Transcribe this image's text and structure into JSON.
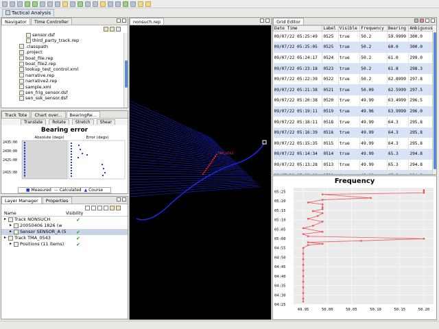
{
  "perspective": {
    "label": "Tactical Analysis"
  },
  "navigator": {
    "tabs": [
      "Navigator",
      "Time Controller"
    ],
    "items": [
      "sensor.dsf",
      "third_party_track.rep",
      ".classpath",
      ".project",
      "boat_file.rep",
      "boat_file2.rep",
      "lookup_test_control.xml",
      "narrative.rep",
      "narrative2.rep",
      "sample.xml",
      "sen_frig_sensor.dsf",
      "sen_ssk_sensor.dsf"
    ]
  },
  "bearing_panel": {
    "tabs": [
      "Track Tote",
      "Chart over...",
      "BearingRe..."
    ],
    "toolbar_buttons": [
      "Translate",
      "Rotate",
      "Stretch",
      "Shear"
    ],
    "chart_title": "Bearing error",
    "axis_absolute": "Absolute (degs)",
    "axis_error": "Error (degs)",
    "y_ticks": [
      "2435:00",
      "2430:00",
      "2425:00",
      "2415:00"
    ],
    "legend": [
      "Measured",
      "Calculated",
      "Course"
    ]
  },
  "layer_manager": {
    "tabs": [
      "Layer Manager",
      "Properties"
    ],
    "columns": [
      "Name",
      "Visibility"
    ],
    "rows": [
      {
        "label": "Track NONSUCH",
        "visible": true
      },
      {
        "label": "20050406 1826 (w",
        "visible": false
      },
      {
        "label": "Sensor SENSOR_A (5",
        "visible": true
      },
      {
        "label": "Track TMA_0543",
        "visible": true
      },
      {
        "label": "Positions (11 items)",
        "visible": true
      }
    ]
  },
  "plot": {
    "tab": "nonsuch.rep",
    "track_label": "TMA_0543"
  },
  "grid_editor": {
    "tab": "Grid Editor",
    "columns": [
      "Date Time",
      "Label",
      "Visible",
      "Frequency",
      "Bearing",
      "Ambiguous"
    ],
    "rows": [
      [
        "09/07/22 05:25:49",
        "0525",
        "true",
        "50.2",
        "59.9999",
        "300.0"
      ],
      [
        "09/07/22 05:25:05",
        "0525",
        "true",
        "50.2",
        "60.0",
        "300.0"
      ],
      [
        "09/07/22 05:24:17",
        "0524",
        "true",
        "50.2",
        "61.0",
        "299.0"
      ],
      [
        "09/07/22 05:23:18",
        "0523",
        "true",
        "50.2",
        "61.8",
        "298.3"
      ],
      [
        "09/07/22 05:22:39",
        "0522",
        "true",
        "50.2",
        "62.8999",
        "297.8"
      ],
      [
        "09/07/22 05:21:38",
        "0521",
        "true",
        "50.09",
        "62.5999",
        "297.5"
      ],
      [
        "09/07/22 05:20:38",
        "0520",
        "true",
        "49.99",
        "63.4999",
        "296.5"
      ],
      [
        "09/07/22 05:19:11",
        "0519",
        "true",
        "49.96",
        "63.9999",
        "296.0"
      ],
      [
        "09/07/22 05:18:11",
        "0518",
        "true",
        "49.99",
        "64.3",
        "295.8"
      ],
      [
        "09/07/22 05:16:39",
        "0516",
        "true",
        "49.99",
        "64.3",
        "295.8"
      ],
      [
        "09/07/22 05:15:35",
        "0515",
        "true",
        "49.99",
        "64.3",
        "295.8"
      ],
      [
        "09/07/22 05:14:34",
        "0514",
        "true",
        "49.99",
        "65.3",
        "294.8"
      ],
      [
        "09/07/22 05:13:28",
        "0513",
        "true",
        "49.99",
        "65.3",
        "294.8"
      ],
      [
        "09/07/22 05:12:00",
        "0512",
        "true",
        "49.99",
        "65.3",
        "294.8"
      ],
      [
        "09/07/22 05:10:44",
        "0510",
        "true",
        "49.99",
        "65.3",
        "294.8"
      ]
    ]
  },
  "chart_data": {
    "type": "line",
    "title": "Frequency",
    "xlabel": "",
    "ylabel": "",
    "x_ticks": [
      "49.95",
      "50.00",
      "50.05",
      "50.10",
      "50.15",
      "50.20"
    ],
    "y_ticks": [
      "05:25",
      "05:20",
      "05:15",
      "05:10",
      "05:05",
      "05:00",
      "04:55",
      "04:50",
      "04:45",
      "04:40",
      "04:35",
      "04:30",
      "04:25"
    ],
    "xlim": [
      49.93,
      50.22
    ],
    "y_minutes_range": [
      265,
      327
    ],
    "series": [
      {
        "points": [
          [
            50.2,
            325.8
          ],
          [
            50.2,
            325.1
          ],
          [
            50.2,
            324.3
          ],
          [
            49.99,
            323.5
          ],
          [
            50.09,
            321.6
          ],
          [
            49.99,
            320.6
          ],
          [
            49.96,
            319.2
          ],
          [
            49.99,
            318.2
          ],
          [
            49.99,
            316.6
          ],
          [
            49.99,
            315.6
          ],
          [
            49.97,
            314.6
          ],
          [
            49.99,
            313.5
          ],
          [
            49.98,
            312.0
          ],
          [
            49.96,
            310.5
          ],
          [
            49.99,
            309.0
          ],
          [
            49.97,
            306.8
          ],
          [
            49.95,
            305.5
          ],
          [
            49.99,
            303.6
          ],
          [
            49.95,
            302.4
          ],
          [
            49.96,
            301.2
          ],
          [
            50.2,
            299.9
          ],
          [
            50.07,
            298.8
          ],
          [
            49.96,
            298.0
          ],
          [
            49.99,
            297.2
          ],
          [
            49.96,
            296.5
          ],
          [
            49.95,
            295.0
          ],
          [
            49.95,
            292.0
          ],
          [
            49.95,
            289.0
          ],
          [
            49.95,
            286.0
          ],
          [
            49.95,
            283.0
          ],
          [
            49.95,
            280.0
          ],
          [
            49.95,
            277.0
          ],
          [
            49.95,
            274.0
          ],
          [
            49.95,
            271.0
          ],
          [
            49.95,
            268.0
          ],
          [
            49.95,
            266.5
          ]
        ]
      }
    ]
  },
  "colors": {
    "plot_background": "#000000",
    "track": "#1a2cff",
    "highlight": "#e02020",
    "chart_series": "#ee5555"
  }
}
